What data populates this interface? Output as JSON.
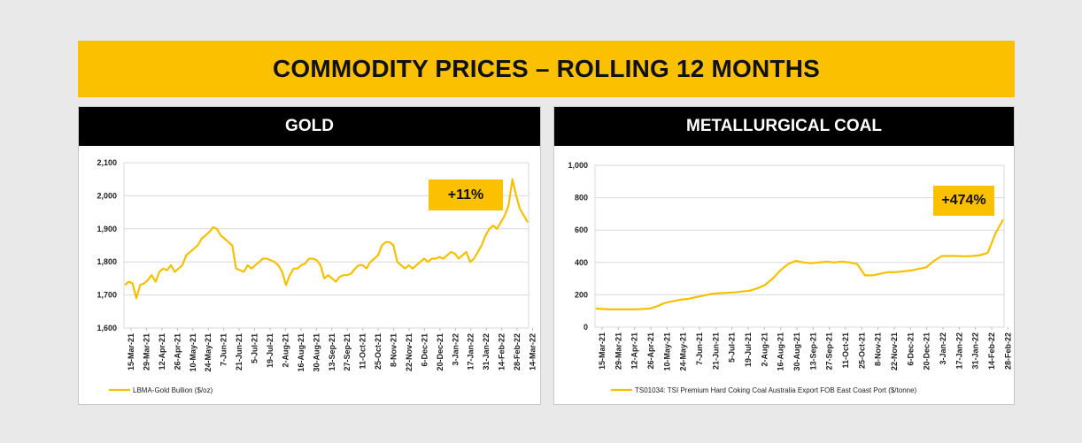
{
  "banner": {
    "title": "COMMODITY PRICES – ROLLING 12 MONTHS"
  },
  "colors": {
    "accent": "#fbc000",
    "header_bg": "#000000",
    "series": "#f5c000"
  },
  "chart_data": [
    {
      "type": "line",
      "title": "GOLD",
      "ylim": [
        1600,
        2100
      ],
      "yticks": [
        "1,600",
        "1,700",
        "1,800",
        "1,900",
        "2,000",
        "2,100"
      ],
      "ytick_values": [
        1600,
        1700,
        1800,
        1900,
        2000,
        2100
      ],
      "xticks": [
        "15-Mar-21",
        "29-Mar-21",
        "12-Apr-21",
        "26-Apr-21",
        "10-May-21",
        "24-May-21",
        "7-Jun-21",
        "21-Jun-21",
        "5-Jul-21",
        "19-Jul-21",
        "2-Aug-21",
        "16-Aug-21",
        "30-Aug-21",
        "13-Sep-21",
        "27-Sep-21",
        "11-Oct-21",
        "25-Oct-21",
        "8-Nov-21",
        "22-Nov-21",
        "6-Dec-21",
        "20-Dec-21",
        "3-Jan-22",
        "17-Jan-22",
        "31-Jan-22",
        "14-Feb-22",
        "28-Feb-22",
        "14-Mar-22"
      ],
      "grid": true,
      "legend_position": "bottom-left",
      "callout": "+11%",
      "series": [
        {
          "name": "LBMA-Gold Bullion ($/oz)",
          "values": [
            1730,
            1740,
            1735,
            1690,
            1730,
            1735,
            1745,
            1760,
            1740,
            1770,
            1780,
            1775,
            1790,
            1770,
            1780,
            1790,
            1820,
            1830,
            1840,
            1850,
            1870,
            1880,
            1890,
            1905,
            1900,
            1880,
            1870,
            1860,
            1850,
            1780,
            1775,
            1770,
            1790,
            1780,
            1790,
            1800,
            1810,
            1810,
            1805,
            1800,
            1790,
            1770,
            1730,
            1760,
            1780,
            1780,
            1790,
            1795,
            1810,
            1810,
            1805,
            1790,
            1750,
            1760,
            1750,
            1740,
            1755,
            1760,
            1760,
            1765,
            1780,
            1790,
            1790,
            1780,
            1800,
            1810,
            1820,
            1850,
            1860,
            1860,
            1850,
            1800,
            1790,
            1780,
            1790,
            1780,
            1790,
            1800,
            1810,
            1800,
            1810,
            1810,
            1815,
            1810,
            1820,
            1830,
            1825,
            1810,
            1820,
            1830,
            1800,
            1810,
            1830,
            1850,
            1880,
            1900,
            1910,
            1900,
            1920,
            1940,
            1970,
            2050,
            2000,
            1960,
            1940,
            1920
          ]
        }
      ]
    },
    {
      "type": "line",
      "title": "METALLURGICAL COAL",
      "ylim": [
        0,
        1000
      ],
      "yticks": [
        "0",
        "200",
        "400",
        "600",
        "800",
        "1,000"
      ],
      "ytick_values": [
        0,
        200,
        400,
        600,
        800,
        1000
      ],
      "xticks": [
        "15-Mar-21",
        "29-Mar-21",
        "12-Apr-21",
        "26-Apr-21",
        "10-May-21",
        "24-May-21",
        "7-Jun-21",
        "21-Jun-21",
        "5-Jul-21",
        "19-Jul-21",
        "2-Aug-21",
        "16-Aug-21",
        "30-Aug-21",
        "13-Sep-21",
        "27-Sep-21",
        "11-Oct-21",
        "25-Oct-21",
        "8-Nov-21",
        "22-Nov-21",
        "6-Dec-21",
        "20-Dec-21",
        "3-Jan-22",
        "17-Jan-22",
        "31-Jan-22",
        "14-Feb-22",
        "28-Feb-22"
      ],
      "grid": true,
      "legend_position": "bottom-left",
      "callout": "+474%",
      "series": [
        {
          "name": "TS01034: TSI Premium Hard Coking Coal Australia Export FOB East Coast Port ($/tonne)",
          "values": [
            115,
            112,
            110,
            110,
            110,
            110,
            112,
            115,
            130,
            150,
            160,
            170,
            175,
            185,
            195,
            205,
            210,
            212,
            215,
            220,
            225,
            240,
            260,
            300,
            350,
            390,
            410,
            400,
            395,
            400,
            405,
            400,
            405,
            400,
            390,
            320,
            320,
            330,
            340,
            340,
            345,
            350,
            360,
            370,
            410,
            440,
            440,
            440,
            438,
            440,
            445,
            460,
            580,
            665
          ]
        }
      ]
    }
  ]
}
